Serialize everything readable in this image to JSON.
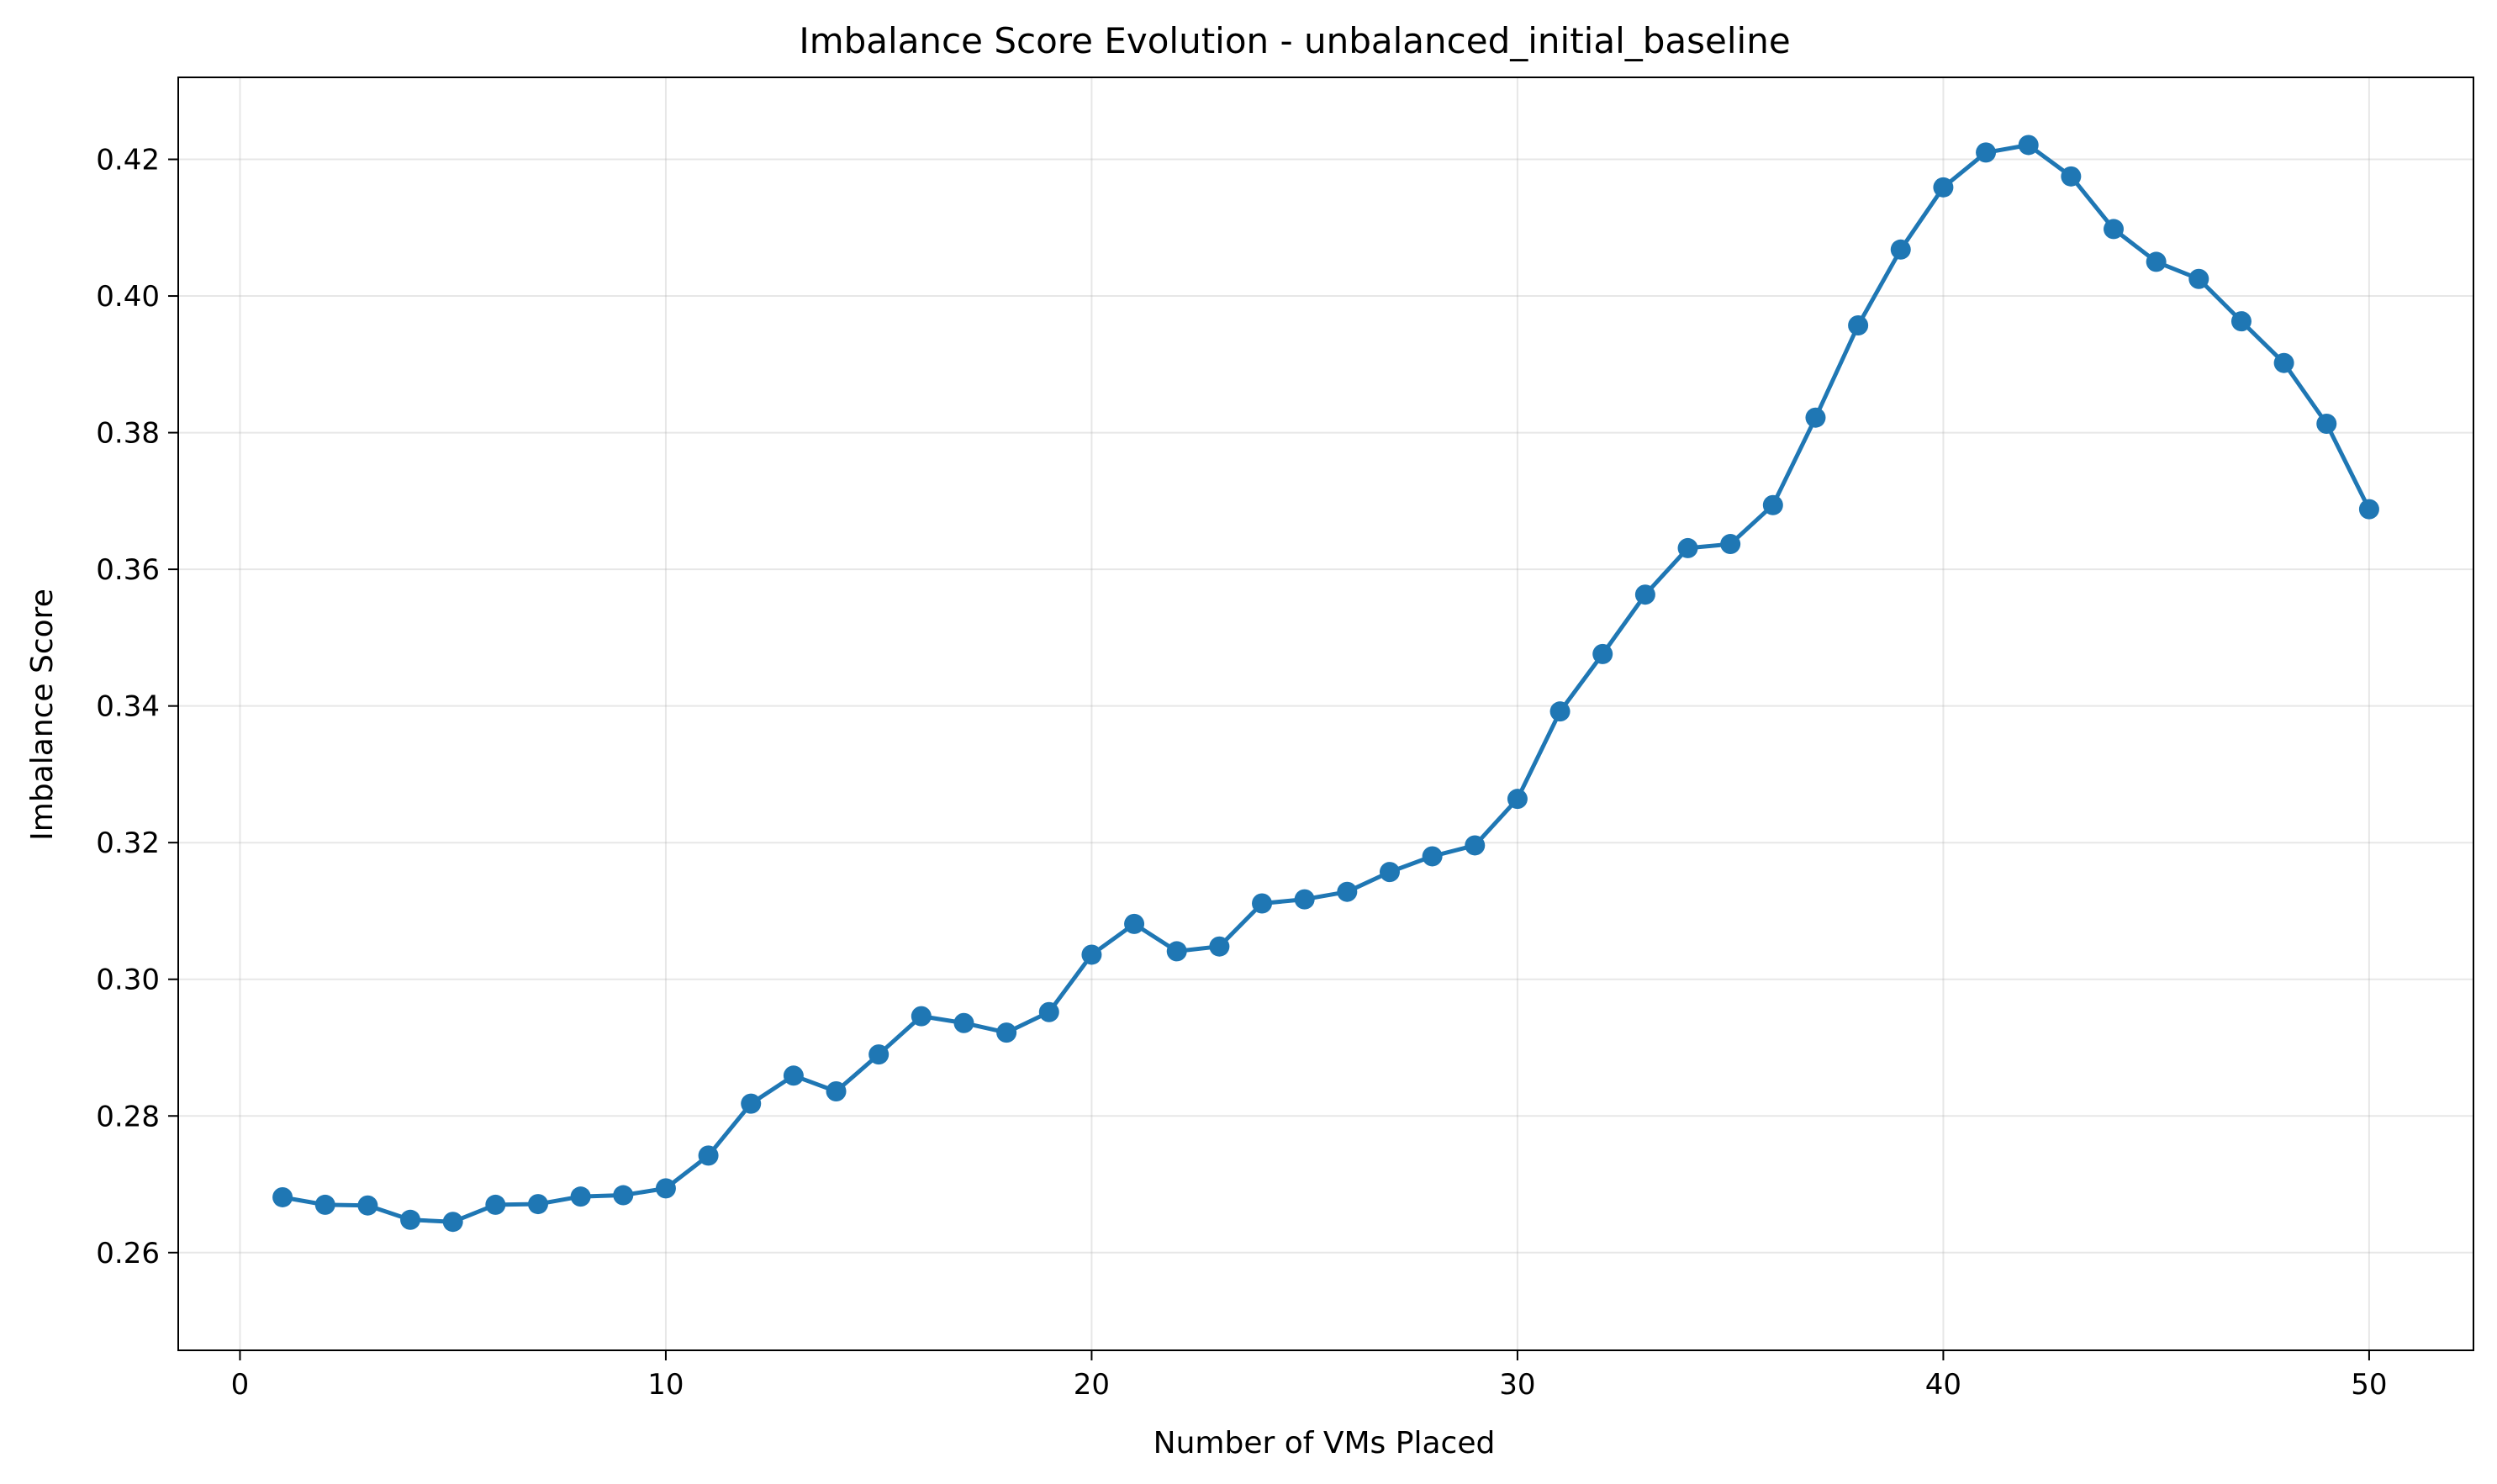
{
  "chart_data": {
    "type": "line",
    "title": "Imbalance Score Evolution - unbalanced_initial_baseline",
    "xlabel": "Number of VMs Placed",
    "ylabel": "Imbalance Score",
    "xlim": [
      -1.45,
      52.45
    ],
    "ylim": [
      0.2457,
      0.432
    ],
    "xticks": [
      0,
      10,
      20,
      30,
      40,
      50
    ],
    "yticks": [
      0.26,
      0.28,
      0.3,
      0.32,
      0.34,
      0.36,
      0.38,
      0.4,
      0.42
    ],
    "xtick_labels": [
      "0",
      "10",
      "20",
      "30",
      "40",
      "50"
    ],
    "ytick_labels": [
      "0.26",
      "0.28",
      "0.30",
      "0.32",
      "0.34",
      "0.36",
      "0.38",
      "0.40",
      "0.42"
    ],
    "grid": true,
    "markers": true,
    "series": [
      {
        "color": "#1f77b4",
        "x": [
          1,
          2,
          3,
          4,
          5,
          6,
          7,
          8,
          9,
          10,
          11,
          12,
          13,
          14,
          15,
          16,
          17,
          18,
          19,
          20,
          21,
          22,
          23,
          24,
          25,
          26,
          27,
          28,
          29,
          30,
          31,
          32,
          33,
          34,
          35,
          36,
          37,
          38,
          39,
          40,
          41,
          42,
          43,
          44,
          45,
          46,
          47,
          48,
          49,
          50
        ],
        "values": [
          0.2681,
          0.267,
          0.2669,
          0.2648,
          0.2645,
          0.267,
          0.2671,
          0.2682,
          0.2684,
          0.2694,
          0.2742,
          0.2818,
          0.2859,
          0.2836,
          0.289,
          0.2946,
          0.2936,
          0.2922,
          0.2952,
          0.3036,
          0.3081,
          0.3041,
          0.3048,
          0.3111,
          0.3117,
          0.3128,
          0.3157,
          0.318,
          0.3196,
          0.3264,
          0.3392,
          0.3476,
          0.3563,
          0.3631,
          0.3637,
          0.3694,
          0.3822,
          0.3957,
          0.4068,
          0.4159,
          0.421,
          0.4221,
          0.4175,
          0.4098,
          0.405,
          0.4025,
          0.3963,
          0.3902,
          0.3813,
          0.3688
        ]
      }
    ]
  }
}
